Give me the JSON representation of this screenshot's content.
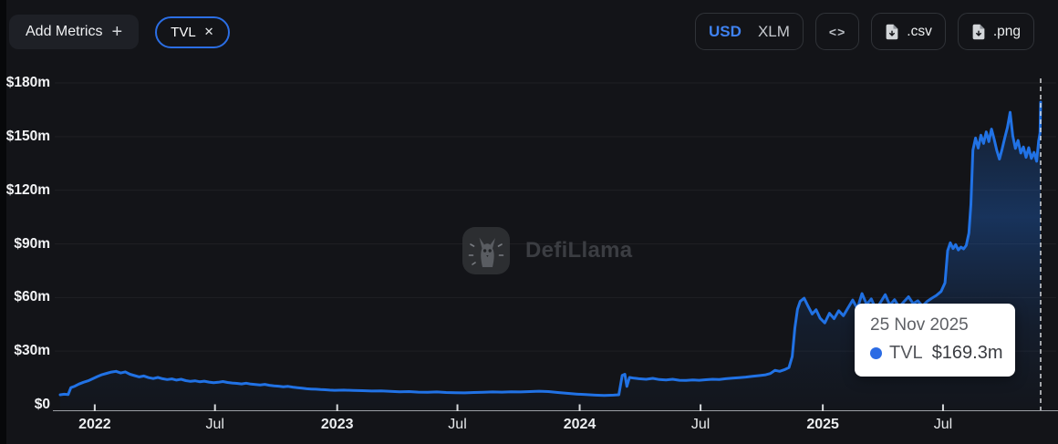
{
  "header": {
    "add_metrics_label": "Add Metrics",
    "add_metrics_plus": "+",
    "metric_pill": {
      "label": "TVL",
      "close": "✕"
    },
    "currency_toggle": {
      "options": [
        "USD",
        "XLM"
      ],
      "selected": "USD"
    },
    "embed_button": "<>",
    "csv_button": ".csv",
    "png_button": ".png"
  },
  "watermark": {
    "text": "DefiLlama"
  },
  "tooltip": {
    "date": "25 Nov 2025",
    "series": "TVL",
    "value": "$169.3m"
  },
  "colors": {
    "accent_blue": "#2172E5",
    "pill_border": "#2b6ee4",
    "usd_selected": "#3f82f1",
    "background": "#131418",
    "tooltip_bg": "#ffffff"
  },
  "chart_data": {
    "type": "area",
    "title": "TVL",
    "unit": "USD millions",
    "ylim": [
      0,
      180
    ],
    "grid": "horizontal-faint",
    "legend_position": "none",
    "x_range": [
      "2021-11-10",
      "2025-11-25"
    ],
    "y_ticks": [
      {
        "value": 0,
        "label": "$0"
      },
      {
        "value": 30,
        "label": "$30m"
      },
      {
        "value": 60,
        "label": "$60m"
      },
      {
        "value": 90,
        "label": "$90m"
      },
      {
        "value": 120,
        "label": "$120m"
      },
      {
        "value": 150,
        "label": "$150m"
      },
      {
        "value": 180,
        "label": "$180m"
      }
    ],
    "x_ticks": [
      {
        "date": "2022-01-01",
        "label": "2022",
        "emphasis": true
      },
      {
        "date": "2022-07-01",
        "label": "Jul",
        "emphasis": false
      },
      {
        "date": "2023-01-01",
        "label": "2023",
        "emphasis": true
      },
      {
        "date": "2023-07-01",
        "label": "Jul",
        "emphasis": false
      },
      {
        "date": "2024-01-01",
        "label": "2024",
        "emphasis": true
      },
      {
        "date": "2024-07-01",
        "label": "Jul",
        "emphasis": false
      },
      {
        "date": "2025-01-01",
        "label": "2025",
        "emphasis": true
      },
      {
        "date": "2025-07-01",
        "label": "Jul",
        "emphasis": false
      }
    ],
    "cursor": {
      "date": "2025-11-25",
      "value": 169.3
    },
    "series": [
      {
        "name": "TVL",
        "color": "#2172E5",
        "points": [
          [
            "2021-11-10",
            5.6
          ],
          [
            "2021-11-16",
            5.9
          ],
          [
            "2021-11-22",
            5.7
          ],
          [
            "2021-11-26",
            9.6
          ],
          [
            "2021-12-02",
            10.4
          ],
          [
            "2021-12-08",
            11.6
          ],
          [
            "2021-12-15",
            12.6
          ],
          [
            "2021-12-22",
            13.4
          ],
          [
            "2021-12-29",
            14.6
          ],
          [
            "2022-01-05",
            15.8
          ],
          [
            "2022-01-12",
            16.9
          ],
          [
            "2022-01-19",
            17.6
          ],
          [
            "2022-01-26",
            18.3
          ],
          [
            "2022-02-02",
            18.7
          ],
          [
            "2022-02-09",
            17.8
          ],
          [
            "2022-02-16",
            18.4
          ],
          [
            "2022-02-23",
            17.1
          ],
          [
            "2022-03-02",
            16.3
          ],
          [
            "2022-03-09",
            15.6
          ],
          [
            "2022-03-16",
            16.1
          ],
          [
            "2022-03-23",
            15.2
          ],
          [
            "2022-03-30",
            14.7
          ],
          [
            "2022-04-06",
            15.3
          ],
          [
            "2022-04-13",
            14.6
          ],
          [
            "2022-04-20",
            14.1
          ],
          [
            "2022-04-27",
            14.5
          ],
          [
            "2022-05-04",
            13.8
          ],
          [
            "2022-05-11",
            14.3
          ],
          [
            "2022-05-18",
            13.5
          ],
          [
            "2022-05-25",
            13.1
          ],
          [
            "2022-06-01",
            13.4
          ],
          [
            "2022-06-08",
            12.9
          ],
          [
            "2022-06-15",
            13.2
          ],
          [
            "2022-06-22",
            12.7
          ],
          [
            "2022-06-29",
            12.4
          ],
          [
            "2022-07-06",
            12.6
          ],
          [
            "2022-07-13",
            13.0
          ],
          [
            "2022-07-20",
            12.5
          ],
          [
            "2022-07-27",
            12.2
          ],
          [
            "2022-08-03",
            12.0
          ],
          [
            "2022-08-10",
            11.7
          ],
          [
            "2022-08-17",
            12.1
          ],
          [
            "2022-08-24",
            11.6
          ],
          [
            "2022-08-31",
            11.3
          ],
          [
            "2022-09-07",
            11.1
          ],
          [
            "2022-09-14",
            11.4
          ],
          [
            "2022-09-21",
            10.9
          ],
          [
            "2022-09-28",
            10.6
          ],
          [
            "2022-10-05",
            10.4
          ],
          [
            "2022-10-12",
            10.1
          ],
          [
            "2022-10-19",
            10.3
          ],
          [
            "2022-10-26",
            9.9
          ],
          [
            "2022-11-02",
            9.6
          ],
          [
            "2022-11-09",
            9.3
          ],
          [
            "2022-11-16",
            9.0
          ],
          [
            "2022-11-23",
            8.8
          ],
          [
            "2022-11-30",
            8.7
          ],
          [
            "2022-12-07",
            8.5
          ],
          [
            "2022-12-14",
            8.4
          ],
          [
            "2022-12-21",
            8.2
          ],
          [
            "2022-12-28",
            8.1
          ],
          [
            "2023-01-11",
            8.2
          ],
          [
            "2023-01-25",
            8.0
          ],
          [
            "2023-02-08",
            7.9
          ],
          [
            "2023-02-22",
            7.7
          ],
          [
            "2023-03-08",
            7.8
          ],
          [
            "2023-03-22",
            7.5
          ],
          [
            "2023-04-05",
            7.3
          ],
          [
            "2023-04-19",
            7.4
          ],
          [
            "2023-05-03",
            7.1
          ],
          [
            "2023-05-17",
            7.0
          ],
          [
            "2023-05-31",
            7.2
          ],
          [
            "2023-06-14",
            6.9
          ],
          [
            "2023-06-28",
            6.8
          ],
          [
            "2023-07-12",
            6.7
          ],
          [
            "2023-07-26",
            6.9
          ],
          [
            "2023-08-09",
            7.0
          ],
          [
            "2023-08-23",
            7.2
          ],
          [
            "2023-09-06",
            7.1
          ],
          [
            "2023-09-20",
            7.3
          ],
          [
            "2023-10-04",
            7.2
          ],
          [
            "2023-10-18",
            7.4
          ],
          [
            "2023-11-01",
            7.6
          ],
          [
            "2023-11-15",
            7.4
          ],
          [
            "2023-11-29",
            6.9
          ],
          [
            "2023-12-13",
            6.4
          ],
          [
            "2023-12-27",
            6.0
          ],
          [
            "2024-01-10",
            5.7
          ],
          [
            "2024-01-24",
            5.4
          ],
          [
            "2024-02-07",
            5.2
          ],
          [
            "2024-02-21",
            5.4
          ],
          [
            "2024-02-29",
            5.6
          ],
          [
            "2024-03-05",
            16.4
          ],
          [
            "2024-03-09",
            17.1
          ],
          [
            "2024-03-12",
            10.3
          ],
          [
            "2024-03-16",
            15.3
          ],
          [
            "2024-03-23",
            14.9
          ],
          [
            "2024-03-30",
            14.6
          ],
          [
            "2024-04-10",
            14.3
          ],
          [
            "2024-04-20",
            14.8
          ],
          [
            "2024-04-30",
            14.1
          ],
          [
            "2024-05-10",
            13.9
          ],
          [
            "2024-05-20",
            14.3
          ],
          [
            "2024-05-30",
            13.7
          ],
          [
            "2024-06-09",
            13.6
          ],
          [
            "2024-06-19",
            13.9
          ],
          [
            "2024-06-29",
            13.7
          ],
          [
            "2024-07-09",
            14.0
          ],
          [
            "2024-07-19",
            14.3
          ],
          [
            "2024-07-29",
            14.1
          ],
          [
            "2024-08-08",
            14.6
          ],
          [
            "2024-08-18",
            14.9
          ],
          [
            "2024-08-28",
            15.2
          ],
          [
            "2024-09-07",
            15.5
          ],
          [
            "2024-09-17",
            15.9
          ],
          [
            "2024-09-27",
            16.3
          ],
          [
            "2024-10-07",
            16.8
          ],
          [
            "2024-10-14",
            17.5
          ],
          [
            "2024-10-21",
            19.3
          ],
          [
            "2024-10-28",
            18.7
          ],
          [
            "2024-11-04",
            19.6
          ],
          [
            "2024-11-11",
            20.8
          ],
          [
            "2024-11-16",
            27.0
          ],
          [
            "2024-11-20",
            43.0
          ],
          [
            "2024-11-24",
            53.5
          ],
          [
            "2024-11-28",
            57.8
          ],
          [
            "2024-12-04",
            59.6
          ],
          [
            "2024-12-10",
            55.0
          ],
          [
            "2024-12-16",
            50.8
          ],
          [
            "2024-12-22",
            53.2
          ],
          [
            "2024-12-28",
            48.4
          ],
          [
            "2025-01-04",
            45.8
          ],
          [
            "2025-01-11",
            51.2
          ],
          [
            "2025-01-18",
            48.2
          ],
          [
            "2025-01-25",
            52.6
          ],
          [
            "2025-02-01",
            49.8
          ],
          [
            "2025-02-08",
            54.2
          ],
          [
            "2025-02-15",
            58.6
          ],
          [
            "2025-02-22",
            53.8
          ],
          [
            "2025-03-01",
            62.2
          ],
          [
            "2025-03-08",
            56.2
          ],
          [
            "2025-03-15",
            59.2
          ],
          [
            "2025-03-22",
            53.4
          ],
          [
            "2025-03-29",
            57.4
          ],
          [
            "2025-04-05",
            61.6
          ],
          [
            "2025-04-12",
            55.8
          ],
          [
            "2025-04-19",
            58.8
          ],
          [
            "2025-04-26",
            54.6
          ],
          [
            "2025-05-03",
            57.6
          ],
          [
            "2025-05-10",
            60.4
          ],
          [
            "2025-05-17",
            56.6
          ],
          [
            "2025-05-24",
            58.2
          ],
          [
            "2025-05-31",
            55.2
          ],
          [
            "2025-06-07",
            57.8
          ],
          [
            "2025-06-14",
            59.6
          ],
          [
            "2025-06-21",
            61.2
          ],
          [
            "2025-06-28",
            63.4
          ],
          [
            "2025-07-04",
            68.2
          ],
          [
            "2025-07-08",
            86.2
          ],
          [
            "2025-07-12",
            90.6
          ],
          [
            "2025-07-16",
            87.4
          ],
          [
            "2025-07-20",
            89.6
          ],
          [
            "2025-07-24",
            86.6
          ],
          [
            "2025-07-28",
            88.2
          ],
          [
            "2025-08-01",
            87.2
          ],
          [
            "2025-08-05",
            89.2
          ],
          [
            "2025-08-09",
            96.0
          ],
          [
            "2025-08-12",
            112.0
          ],
          [
            "2025-08-15",
            142.4
          ],
          [
            "2025-08-19",
            149.2
          ],
          [
            "2025-08-23",
            143.6
          ],
          [
            "2025-08-27",
            150.8
          ],
          [
            "2025-08-31",
            146.2
          ],
          [
            "2025-09-04",
            152.6
          ],
          [
            "2025-09-08",
            147.2
          ],
          [
            "2025-09-12",
            154.2
          ],
          [
            "2025-09-16",
            148.6
          ],
          [
            "2025-09-20",
            142.2
          ],
          [
            "2025-09-24",
            137.4
          ],
          [
            "2025-09-28",
            143.2
          ],
          [
            "2025-10-02",
            149.4
          ],
          [
            "2025-10-06",
            155.2
          ],
          [
            "2025-10-10",
            163.6
          ],
          [
            "2025-10-14",
            150.4
          ],
          [
            "2025-10-18",
            143.4
          ],
          [
            "2025-10-22",
            147.8
          ],
          [
            "2025-10-26",
            140.8
          ],
          [
            "2025-10-30",
            144.2
          ],
          [
            "2025-11-03",
            138.4
          ],
          [
            "2025-11-07",
            143.8
          ],
          [
            "2025-11-11",
            137.8
          ],
          [
            "2025-11-15",
            141.2
          ],
          [
            "2025-11-19",
            136.2
          ],
          [
            "2025-11-22",
            147.6
          ],
          [
            "2025-11-24",
            152.0
          ],
          [
            "2025-11-25",
            169.3
          ]
        ]
      }
    ]
  }
}
